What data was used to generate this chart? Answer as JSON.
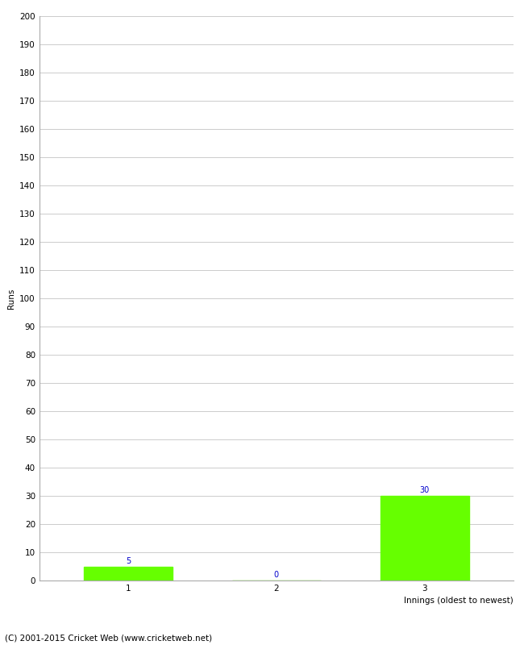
{
  "categories": [
    "1",
    "2",
    "3"
  ],
  "values": [
    5,
    0,
    30
  ],
  "bar_color": "#66ff00",
  "bar_edge_color": "#66ff00",
  "title": "",
  "xlabel": "Innings (oldest to newest)",
  "ylabel": "Runs",
  "ylim": [
    0,
    200
  ],
  "yticks": [
    0,
    10,
    20,
    30,
    40,
    50,
    60,
    70,
    80,
    90,
    100,
    110,
    120,
    130,
    140,
    150,
    160,
    170,
    180,
    190,
    200
  ],
  "value_label_color": "#0000cc",
  "value_label_fontsize": 7,
  "axis_label_fontsize": 7.5,
  "tick_label_fontsize": 7.5,
  "footer_text": "(C) 2001-2015 Cricket Web (www.cricketweb.net)",
  "footer_fontsize": 7.5,
  "grid_color": "#cccccc",
  "background_color": "#ffffff"
}
